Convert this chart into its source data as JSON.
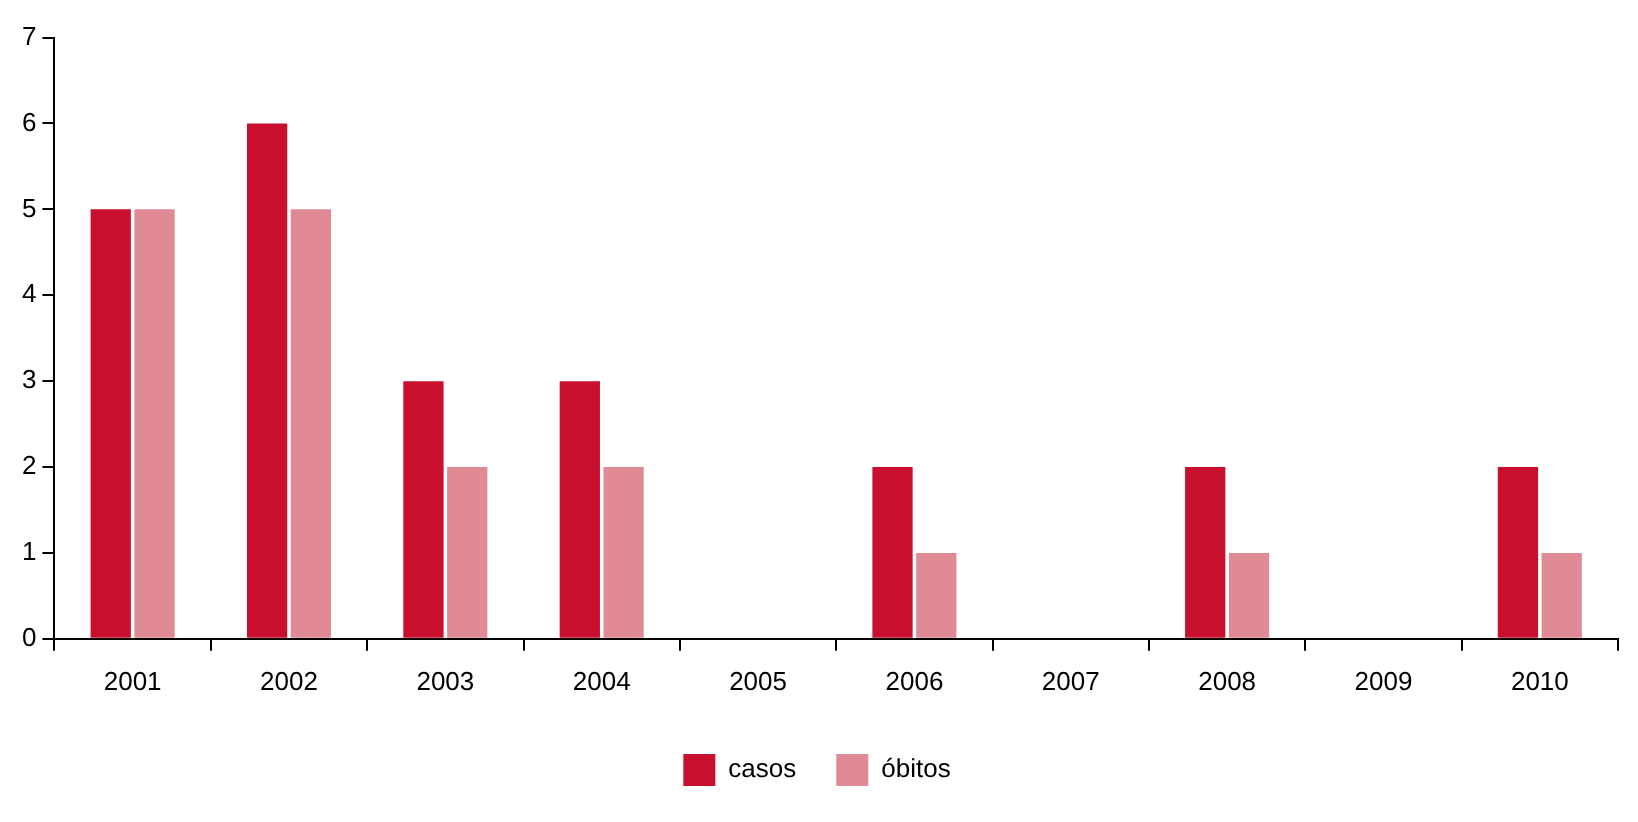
{
  "chart_data": {
    "type": "bar",
    "categories": [
      "2001",
      "2002",
      "2003",
      "2004",
      "2005",
      "2006",
      "2007",
      "2008",
      "2009",
      "2010"
    ],
    "series": [
      {
        "name": "casos",
        "color": "#c8102e",
        "values": [
          5,
          6,
          3,
          3,
          0,
          2,
          0,
          2,
          0,
          2
        ]
      },
      {
        "name": "óbitos",
        "color": "#e08a96",
        "values": [
          5,
          5,
          2,
          2,
          0,
          1,
          0,
          1,
          0,
          1
        ]
      }
    ],
    "ylim": [
      0,
      7
    ],
    "yticks": [
      0,
      1,
      2,
      3,
      4,
      5,
      6,
      7
    ],
    "grid": false,
    "legend": "bottom"
  }
}
